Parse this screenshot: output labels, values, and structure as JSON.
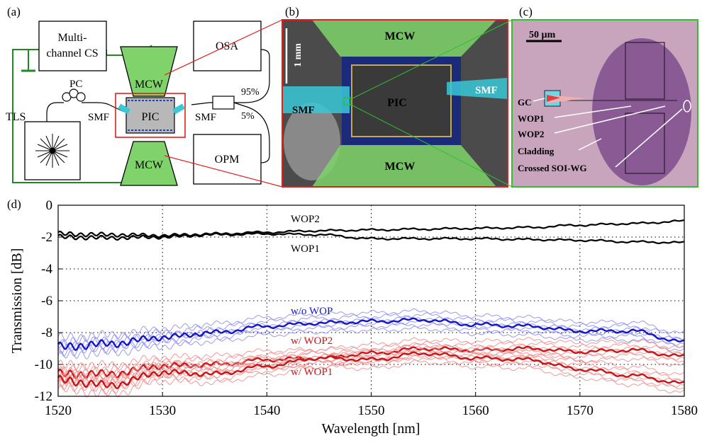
{
  "panel_labels": {
    "a": "(a)",
    "b": "(b)",
    "c": "(c)",
    "d": "(d)"
  },
  "schematic": {
    "cs_line1": "Multi-",
    "cs_line2": "channel CS",
    "osa": "OSA",
    "opm": "OPM",
    "tls": "TLS",
    "pc": "PC",
    "smf_left": "SMF",
    "smf_right": "SMF",
    "pic": "PIC",
    "mcw_top": "MCW",
    "mcw_bottom": "MCW",
    "split_95": "95%",
    "split_5": "5%",
    "wire_count_top": "15",
    "wire_count_bottom": "15"
  },
  "photo_b": {
    "mcw_top": "MCW",
    "mcw_bottom": "MCW",
    "pic": "PIC",
    "smf_left": "SMF",
    "smf_right": "SMF",
    "scale": "1 mm"
  },
  "photo_c": {
    "scale": "50 µm",
    "gc": "GC",
    "wop1": "WOP1",
    "wop2": "WOP2",
    "cladding": "Cladding",
    "crossed": "Crossed SOI-WG"
  },
  "colors": {
    "wop": "#000000",
    "without_wop": "#1515c8",
    "without_wop_light": "#8f8ff0",
    "with_wop": "#c81515",
    "with_wop_light": "#f08f8f",
    "mcw_green": "#7fd36a",
    "frame_red": "#e02020",
    "frame_green": "#30c030",
    "wire_green": "#1f8a1f"
  },
  "chart_data": {
    "type": "line",
    "xlabel": "Wavelength [nm]",
    "ylabel": "Transmission [dB]",
    "xlim": [
      1520,
      1580
    ],
    "ylim": [
      -12,
      0
    ],
    "xticks": [
      1520,
      1530,
      1540,
      1550,
      1560,
      1570,
      1580
    ],
    "yticks": [
      0,
      -2,
      -4,
      -6,
      -8,
      -10,
      -12
    ],
    "grid": "dotted",
    "series": [
      {
        "name": "WOP2",
        "x": [
          1520,
          1525,
          1530,
          1535,
          1540,
          1545,
          1550,
          1555,
          1560,
          1565,
          1570,
          1575,
          1580
        ],
        "values": [
          -1.8,
          -1.85,
          -1.9,
          -1.8,
          -1.7,
          -1.6,
          -1.55,
          -1.5,
          -1.45,
          -1.4,
          -1.25,
          -1.15,
          -1.0
        ]
      },
      {
        "name": "WOP1",
        "x": [
          1520,
          1525,
          1530,
          1535,
          1540,
          1545,
          1550,
          1555,
          1560,
          1565,
          1570,
          1575,
          1580
        ],
        "values": [
          -2.0,
          -2.05,
          -2.0,
          -1.85,
          -1.8,
          -1.85,
          -2.1,
          -2.1,
          -2.1,
          -2.15,
          -2.2,
          -2.3,
          -2.35
        ]
      },
      {
        "name": "w/o WOP",
        "x": [
          1520,
          1525,
          1530,
          1535,
          1540,
          1545,
          1550,
          1555,
          1560,
          1565,
          1570,
          1575,
          1580
        ],
        "values": [
          -8.9,
          -8.7,
          -8.3,
          -8.0,
          -7.6,
          -7.4,
          -7.3,
          -7.2,
          -7.5,
          -7.6,
          -7.9,
          -7.9,
          -8.6
        ]
      },
      {
        "name": "w/ WOP2",
        "x": [
          1520,
          1525,
          1530,
          1535,
          1540,
          1545,
          1550,
          1555,
          1560,
          1565,
          1570,
          1575,
          1580
        ],
        "values": [
          -10.6,
          -10.6,
          -10.1,
          -10.0,
          -9.7,
          -9.6,
          -9.3,
          -9.0,
          -9.1,
          -9.0,
          -9.2,
          -9.1,
          -9.5
        ]
      },
      {
        "name": "w/ WOP1",
        "x": [
          1520,
          1525,
          1530,
          1535,
          1540,
          1545,
          1550,
          1555,
          1560,
          1565,
          1570,
          1575,
          1580
        ],
        "values": [
          -11.0,
          -11.3,
          -10.5,
          -10.6,
          -10.1,
          -9.6,
          -9.7,
          -9.3,
          -9.6,
          -9.7,
          -10.3,
          -10.7,
          -11.2
        ]
      }
    ]
  }
}
